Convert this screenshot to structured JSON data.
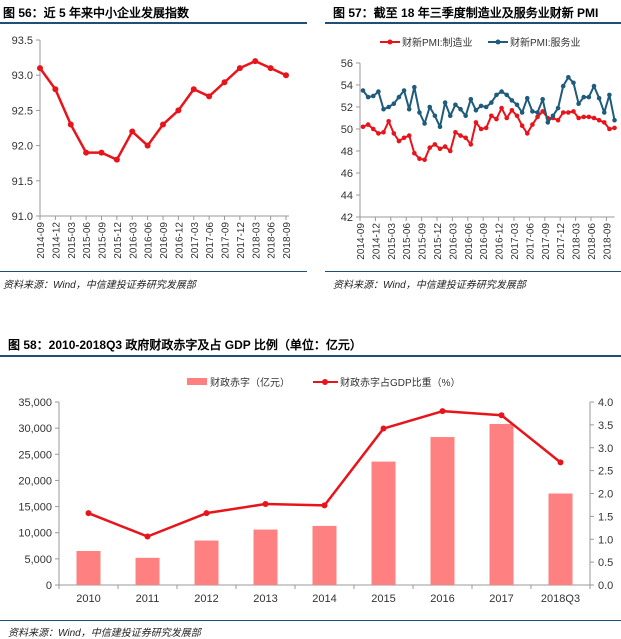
{
  "chart_data": [
    {
      "type": "line",
      "title": "图 56：近 5 年来中小企业发展指数",
      "source": "资料来源：Wind，中信建投证券研究发展部",
      "categories": [
        "2014-09",
        "2014-12",
        "2015-03",
        "2015-06",
        "2015-09",
        "2015-12",
        "2016-03",
        "2016-06",
        "2016-09",
        "2016-12",
        "2017-03",
        "2017-06",
        "2017-09",
        "2017-12",
        "2018-03",
        "2018-06",
        "2018-09"
      ],
      "values": [
        93.1,
        92.8,
        92.3,
        91.9,
        91.9,
        91.8,
        92.2,
        92.0,
        92.3,
        92.5,
        92.8,
        92.7,
        92.9,
        93.1,
        93.2,
        93.1,
        93.0
      ],
      "ylim": [
        91.0,
        93.5
      ],
      "yticks": [
        "91.0",
        "91.5",
        "92.0",
        "92.5",
        "93.0",
        "93.5"
      ],
      "color": "#e8141b",
      "grid": false
    },
    {
      "type": "line",
      "title": "图 57：截至 18 年三季度制造业及服务业财新 PMI",
      "source": "资料来源：Wind，中信建投证券研究发展部",
      "x_start": "2014-09",
      "x_end": "2018-10",
      "xticks": [
        "2014-09",
        "2014-12",
        "2015-03",
        "2015-06",
        "2015-09",
        "2015-12",
        "2016-03",
        "2016-06",
        "2016-09",
        "2016-12",
        "2017-03",
        "2017-06",
        "2017-09",
        "2017-12",
        "2018-03",
        "2018-06",
        "2018-09"
      ],
      "ylim": [
        42,
        56
      ],
      "yticks": [
        "42",
        "44",
        "46",
        "48",
        "50",
        "52",
        "54",
        "56"
      ],
      "legend": "top",
      "grid": false,
      "series": [
        {
          "name": "财新PMI:制造业",
          "color": "#e8141b",
          "values": [
            50.2,
            50.4,
            50.0,
            49.6,
            49.7,
            50.7,
            49.6,
            48.9,
            49.2,
            49.4,
            47.8,
            47.3,
            47.2,
            48.3,
            48.6,
            48.2,
            48.4,
            48.0,
            49.7,
            49.4,
            49.2,
            48.6,
            50.6,
            50.0,
            50.1,
            51.2,
            50.9,
            51.9,
            51.0,
            51.7,
            51.2,
            50.3,
            49.6,
            50.4,
            51.1,
            51.6,
            51.0,
            51.0,
            50.8,
            51.5,
            51.5,
            51.6,
            51.0,
            51.1,
            51.1,
            51.0,
            50.8,
            50.6,
            50.0,
            50.1
          ]
        },
        {
          "name": "财新PMI:服务业",
          "color": "#1f5b7a",
          "values": [
            53.5,
            52.9,
            53.0,
            53.4,
            51.8,
            52.0,
            52.3,
            52.9,
            53.5,
            51.8,
            53.8,
            51.5,
            50.5,
            52.0,
            51.2,
            50.2,
            52.4,
            51.2,
            52.2,
            51.8,
            51.2,
            52.7,
            51.7,
            52.1,
            52.0,
            52.4,
            53.1,
            53.4,
            53.1,
            52.6,
            52.2,
            51.5,
            52.8,
            51.6,
            51.5,
            52.7,
            50.6,
            51.2,
            51.9,
            53.9,
            54.7,
            54.2,
            52.3,
            52.9,
            52.9,
            53.9,
            52.8,
            51.5,
            53.1,
            50.8
          ]
        }
      ]
    },
    {
      "type": "bar",
      "title": "图 58：2010-2018Q3 政府财政赤字及占 GDP 比例（单位：亿元）",
      "source": "资料来源：Wind，中信建投证券研究发展部",
      "categories": [
        "2010",
        "2011",
        "2012",
        "2013",
        "2014",
        "2015",
        "2016",
        "2017",
        "2018Q3"
      ],
      "legend": "top",
      "grid": false,
      "series": [
        {
          "name": "财政赤字（亿元）",
          "type": "bar",
          "axis": "left",
          "color": "#ff8080",
          "values": [
            6500,
            5200,
            8500,
            10600,
            11300,
            23600,
            28300,
            30800,
            17500
          ]
        },
        {
          "name": "财政赤字占GDP比重（%）",
          "type": "line",
          "axis": "right",
          "color": "#e8141b",
          "values": [
            1.57,
            1.06,
            1.57,
            1.77,
            1.74,
            3.42,
            3.8,
            3.71,
            2.68
          ]
        }
      ],
      "ylim_left": [
        0,
        35000
      ],
      "yticks_left": [
        "0",
        "5,000",
        "10,000",
        "15,000",
        "20,000",
        "25,000",
        "30,000",
        "35,000"
      ],
      "ylim_right": [
        0,
        4.0
      ],
      "yticks_right": [
        "0.0",
        "0.5",
        "1.0",
        "1.5",
        "2.0",
        "2.5",
        "3.0",
        "3.5",
        "4.0"
      ]
    }
  ]
}
